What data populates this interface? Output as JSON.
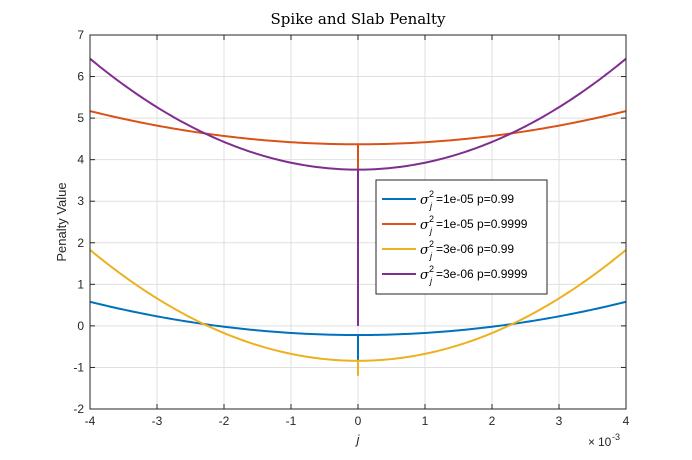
{
  "chart_data": {
    "type": "line",
    "title": "Spike and Slab Penalty",
    "xlabel": "j",
    "ylabel": "Penalty Value",
    "x_exponent_base": "10",
    "x_exponent_power": "-3",
    "xlim": [
      -4,
      4
    ],
    "ylim": [
      -2,
      7
    ],
    "x_ticks": [
      -4,
      -3,
      -2,
      -1,
      0,
      1,
      2,
      3,
      4
    ],
    "x_tick_labels": [
      "-4",
      "-3",
      "-2",
      "-1",
      "0",
      "1",
      "2",
      "3",
      "4"
    ],
    "y_ticks": [
      -2,
      -1,
      0,
      1,
      2,
      3,
      4,
      5,
      6,
      7
    ],
    "y_tick_labels": [
      "-2",
      "-1",
      "0",
      "1",
      "2",
      "3",
      "4",
      "5",
      "6",
      "7"
    ],
    "grid": true,
    "legend_position": "center-right",
    "series": [
      {
        "name": "σ_j^2=1e-05 p=0.99",
        "legend_sigma": "σ",
        "legend_sup": "2",
        "legend_sub": "j",
        "legend_rest": "=1e-05 p=0.99",
        "color": "#0072BD",
        "vertex": -0.22,
        "edge_value": 0.58,
        "spike_bottom": -0.85
      },
      {
        "name": "σ_j^2=1e-05 p=0.9999",
        "legend_sigma": "σ",
        "legend_sup": "2",
        "legend_sub": "j",
        "legend_rest": "=1e-05 p=0.9999",
        "color": "#D95319",
        "vertex": 4.37,
        "edge_value": 5.17,
        "spike_bottom": 3.75
      },
      {
        "name": "σ_j^2=3e-06 p=0.99",
        "legend_sigma": "σ",
        "legend_sup": "2",
        "legend_sub": "j",
        "legend_rest": "=3e-06 p=0.99",
        "color": "#EDB120",
        "vertex": -0.84,
        "edge_value": 1.83,
        "spike_bottom": -1.2
      },
      {
        "name": "σ_j^2=3e-06 p=0.9999",
        "legend_sigma": "σ",
        "legend_sup": "2",
        "legend_sub": "j",
        "legend_rest": "=3e-06 p=0.9999",
        "color": "#7E2F8E",
        "vertex": 3.76,
        "edge_value": 6.43,
        "spike_bottom": 0.0
      }
    ]
  }
}
